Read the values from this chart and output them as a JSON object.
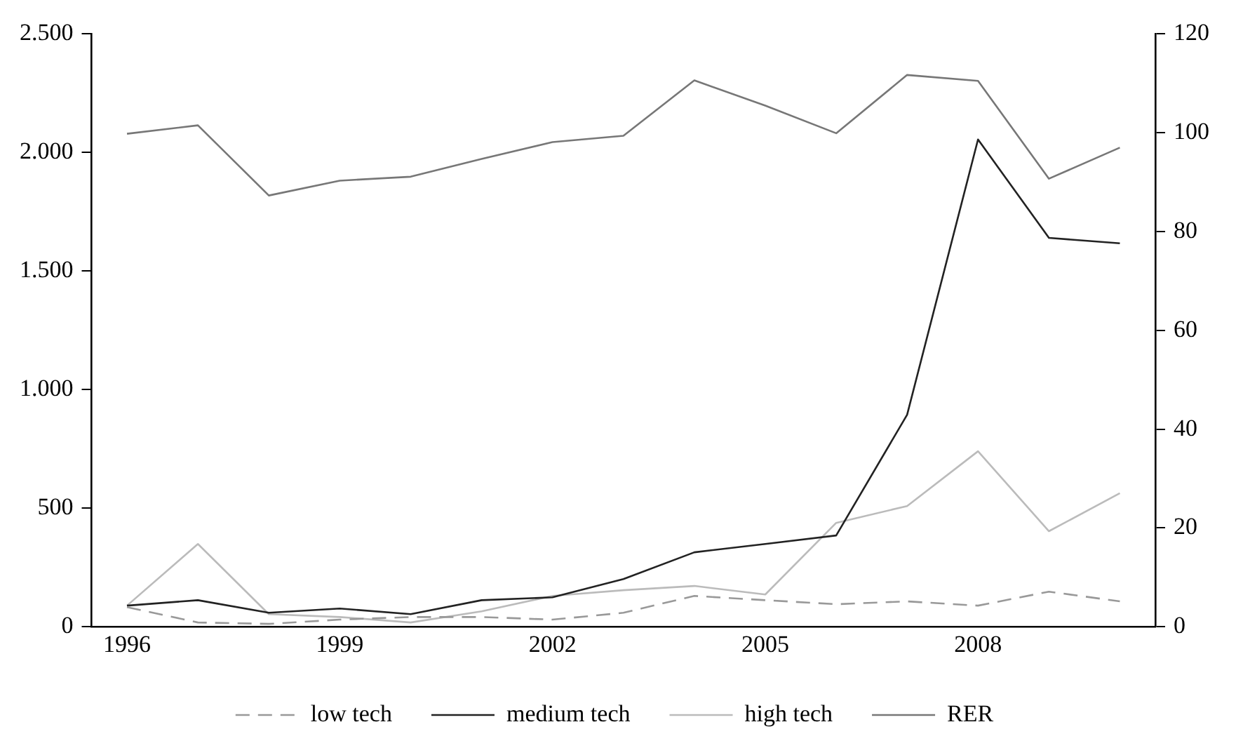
{
  "chart_data": {
    "type": "line",
    "x": [
      1996,
      1997,
      1998,
      1999,
      2000,
      2001,
      2002,
      2003,
      2004,
      2005,
      2006,
      2007,
      2008,
      2009,
      2010
    ],
    "series": [
      {
        "name": "low tech",
        "color": "#999999",
        "line_style": "dashed",
        "values": [
          83,
          18,
          12,
          30,
          41,
          41,
          30,
          59,
          130,
          112,
          95,
          107,
          89,
          148,
          107
        ]
      },
      {
        "name": "medium tech",
        "color": "#222222",
        "values": [
          89,
          112,
          59,
          77,
          53,
          112,
          124,
          201,
          314,
          349,
          385,
          894,
          2055,
          1640,
          1617
        ]
      },
      {
        "name": "high tech",
        "color": "#bbbbbb",
        "values": [
          89,
          349,
          53,
          41,
          18,
          65,
          130,
          154,
          172,
          136,
          438,
          509,
          740,
          403,
          563
        ]
      },
      {
        "name": "RER",
        "color": "#777777",
        "axis": "y2",
        "values": [
          99.8,
          101.5,
          87.3,
          90.3,
          91.1,
          94.7,
          98.1,
          99.4,
          110.6,
          105.5,
          99.9,
          111.7,
          110.5,
          90.7,
          97
        ]
      }
    ],
    "xlim": [
      1995.5,
      2010.5
    ],
    "xticks": [
      1996,
      1999,
      2002,
      2005,
      2008
    ],
    "ylim": [
      0,
      2500
    ],
    "yticks": [
      0,
      500,
      {
        "value": 1000,
        "label": "1.000"
      },
      {
        "value": 1500,
        "label": "1.500"
      },
      {
        "value": 2000,
        "label": "2.000"
      },
      {
        "value": 2500,
        "label": "2.500"
      }
    ],
    "y2lim": [
      0,
      120
    ],
    "y2ticks": [
      0,
      20,
      40,
      60,
      80,
      100,
      120
    ],
    "grid": false,
    "legend": "bottom",
    "marker": "none",
    "line_style": "solid"
  }
}
